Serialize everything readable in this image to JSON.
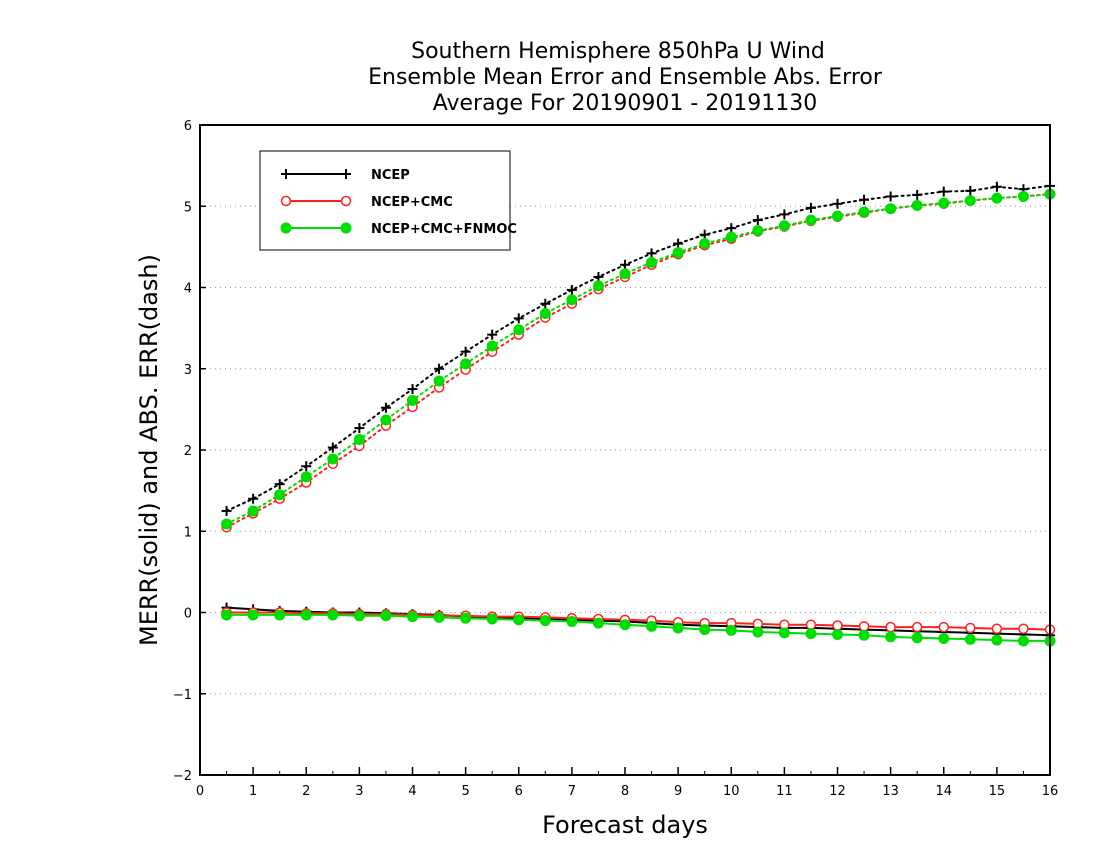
{
  "chart_data": {
    "type": "line",
    "title_lines": [
      "Southern Hemisphere 850hPa U Wind",
      "Ensemble Mean Error and Ensemble Abs. Error",
      "Average For 20190901 - 20191130"
    ],
    "xlabel": "Forecast days",
    "ylabel": "MERR(solid) and ABS. ERR(dash)",
    "xlim": [
      0,
      16
    ],
    "ylim": [
      -2,
      6
    ],
    "xticks": [
      "0",
      "1",
      "2",
      "3",
      "4",
      "5",
      "6",
      "7",
      "8",
      "9",
      "10",
      "11",
      "12",
      "13",
      "14",
      "15",
      "16"
    ],
    "yticks": [
      "−2",
      "−1",
      "0",
      "1",
      "2",
      "3",
      "4",
      "5",
      "6"
    ],
    "grid": "horizontal-dotted",
    "legend_position": "top-left",
    "x": [
      0.5,
      1,
      1.5,
      2,
      2.5,
      3,
      3.5,
      4,
      4.5,
      5,
      5.5,
      6,
      6.5,
      7,
      7.5,
      8,
      8.5,
      9,
      9.5,
      10,
      10.5,
      11,
      11.5,
      12,
      12.5,
      13,
      13.5,
      14,
      14.5,
      15,
      15.5,
      16
    ],
    "series": [
      {
        "name": "NCEP",
        "color": "#000000",
        "marker": "plus",
        "merr": [
          0.06,
          0.04,
          0.02,
          0.01,
          0,
          0,
          -0.01,
          -0.02,
          -0.03,
          -0.05,
          -0.06,
          -0.07,
          -0.08,
          -0.09,
          -0.1,
          -0.11,
          -0.13,
          -0.15,
          -0.16,
          -0.17,
          -0.18,
          -0.19,
          -0.19,
          -0.2,
          -0.21,
          -0.22,
          -0.23,
          -0.24,
          -0.25,
          -0.26,
          -0.27,
          -0.28
        ],
        "abs_err": [
          1.25,
          1.4,
          1.58,
          1.8,
          2.03,
          2.27,
          2.52,
          2.75,
          3,
          3.21,
          3.42,
          3.62,
          3.8,
          3.97,
          4.13,
          4.28,
          4.42,
          4.54,
          4.65,
          4.73,
          4.83,
          4.9,
          4.98,
          5.03,
          5.08,
          5.12,
          5.14,
          5.18,
          5.19,
          5.24,
          5.21,
          5.25
        ]
      },
      {
        "name": "NCEP+CMC",
        "color": "#ff2020",
        "marker": "open-circle",
        "merr": [
          0,
          0,
          0,
          -0.01,
          -0.01,
          -0.02,
          -0.02,
          -0.03,
          -0.04,
          -0.04,
          -0.05,
          -0.05,
          -0.06,
          -0.07,
          -0.08,
          -0.09,
          -0.1,
          -0.12,
          -0.13,
          -0.13,
          -0.14,
          -0.15,
          -0.15,
          -0.16,
          -0.17,
          -0.18,
          -0.18,
          -0.18,
          -0.19,
          -0.2,
          -0.2,
          -0.21
        ],
        "abs_err": [
          1.05,
          1.22,
          1.4,
          1.6,
          1.83,
          2.05,
          2.3,
          2.53,
          2.77,
          2.99,
          3.21,
          3.42,
          3.63,
          3.8,
          3.98,
          4.13,
          4.28,
          4.41,
          4.52,
          4.6,
          4.69,
          4.75,
          4.82,
          4.87,
          4.92,
          4.97,
          5.01,
          5.03,
          5.07,
          5.1,
          5.12,
          5.15
        ]
      },
      {
        "name": "NCEP+CMC+FNMOC",
        "color": "#00dd00",
        "marker": "filled-circle",
        "merr": [
          -0.03,
          -0.03,
          -0.03,
          -0.03,
          -0.03,
          -0.04,
          -0.04,
          -0.05,
          -0.06,
          -0.07,
          -0.08,
          -0.09,
          -0.1,
          -0.11,
          -0.13,
          -0.15,
          -0.17,
          -0.19,
          -0.21,
          -0.22,
          -0.24,
          -0.25,
          -0.26,
          -0.27,
          -0.28,
          -0.3,
          -0.31,
          -0.32,
          -0.33,
          -0.34,
          -0.35,
          -0.35
        ],
        "abs_err": [
          1.09,
          1.25,
          1.45,
          1.67,
          1.89,
          2.13,
          2.37,
          2.61,
          2.85,
          3.06,
          3.28,
          3.48,
          3.68,
          3.85,
          4.02,
          4.17,
          4.31,
          4.43,
          4.54,
          4.62,
          4.7,
          4.76,
          4.83,
          4.88,
          4.93,
          4.97,
          5.01,
          5.04,
          5.07,
          5.1,
          5.12,
          5.15
        ]
      }
    ]
  }
}
